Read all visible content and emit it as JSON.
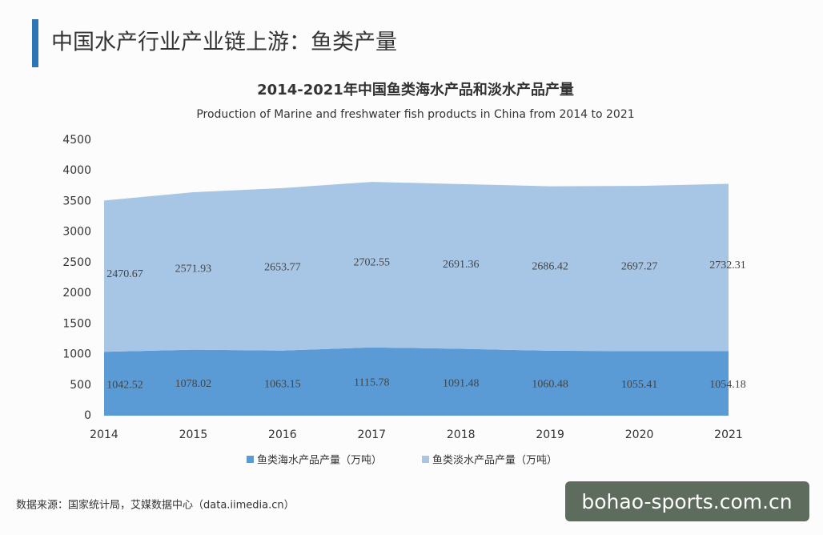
{
  "header": {
    "title": "中国水产行业产业链上游：鱼类产量"
  },
  "chart_data": {
    "type": "stacked-area",
    "title": "2014-2021年中国鱼类海水产品和淡水产品产量",
    "subtitle": "Production of Marine and freshwater fish products in China from 2014 to 2021",
    "categories": [
      "2014",
      "2015",
      "2016",
      "2017",
      "2018",
      "2019",
      "2020",
      "2021"
    ],
    "series": [
      {
        "name": "鱼类海水产品产量（万吨）",
        "color": "#5b9bd5",
        "values": [
          1042.52,
          1078.02,
          1063.15,
          1115.78,
          1091.48,
          1060.48,
          1055.41,
          1054.18
        ]
      },
      {
        "name": "鱼类淡水产品产量（万吨）",
        "color": "#a7c6e6",
        "values": [
          2470.67,
          2571.93,
          2653.77,
          2702.55,
          2691.36,
          2686.42,
          2697.27,
          2732.31
        ]
      }
    ],
    "ylim": [
      0,
      4500
    ],
    "yticks": [
      0,
      500,
      1000,
      1500,
      2000,
      2500,
      3000,
      3500,
      4000,
      4500
    ],
    "legend": "bottom"
  },
  "source": "数据来源：国家统计局，艾媒数据中心（data.iimedia.cn）",
  "watermark": "bohao-sports.com.cn"
}
